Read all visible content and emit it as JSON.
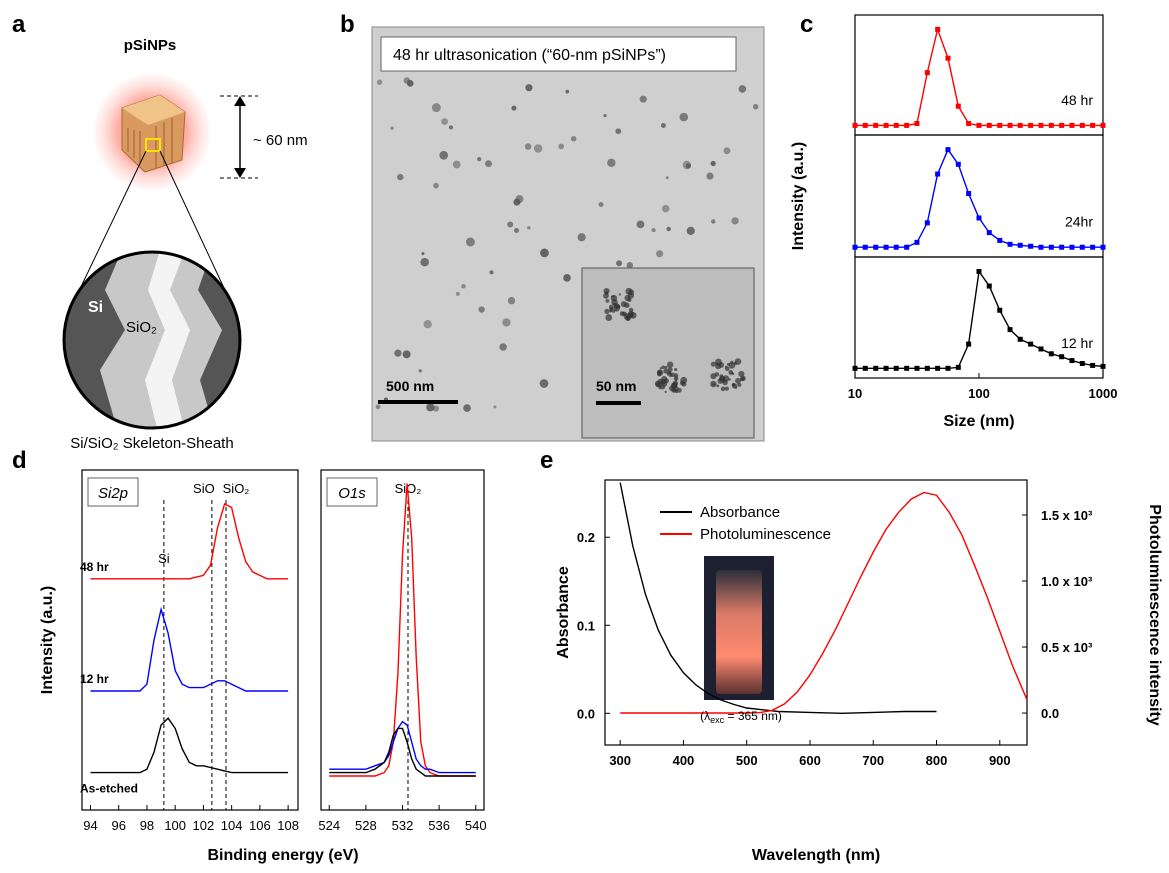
{
  "figure": {
    "panel_labels": [
      "a",
      "b",
      "c",
      "d",
      "e"
    ],
    "panel_a": {
      "title": "pSiNPs",
      "size_label": "~ 60 nm",
      "si_label": "Si",
      "sio2_label": "SiO₂",
      "caption": "Si/SiO₂ Skeleton-Sheath"
    },
    "panel_b": {
      "title": "48 hr ultrasonication (“60-nm pSiNPs”)",
      "scale_bar": "500 nm",
      "inset_scale_bar": "50 nm"
    }
  },
  "chart_data": [
    {
      "type": "line",
      "xscale": "log",
      "xlim": [
        10,
        1000
      ],
      "ylim": [
        -0.1,
        1.15
      ],
      "x": [
        10,
        12.1,
        14.7,
        17.8,
        21.5,
        26.1,
        31.6,
        38.3,
        46.4,
        56.2,
        68.1,
        82.5,
        100,
        121,
        147,
        178,
        215,
        261,
        316,
        383,
        464,
        562,
        681,
        825,
        1000
      ],
      "series": [
        {
          "name": "48 hr",
          "color": "#ff0000",
          "values": [
            0,
            0,
            0,
            0,
            0,
            0,
            0.02,
            0.55,
            1.0,
            0.7,
            0.2,
            0.02,
            0,
            0,
            0,
            0,
            0,
            0,
            0,
            0,
            0,
            0,
            0,
            0,
            0
          ]
        }
      ]
    },
    {
      "type": "line",
      "xscale": "log",
      "xlim": [
        10,
        1000
      ],
      "ylim": [
        -0.1,
        1.15
      ],
      "ylabel": "Intensity (a.u.)",
      "x": [
        10,
        12.1,
        14.7,
        17.8,
        21.5,
        26.1,
        31.6,
        38.3,
        46.4,
        56.2,
        68.1,
        82.5,
        100,
        121,
        147,
        178,
        215,
        261,
        316,
        383,
        464,
        562,
        681,
        825,
        1000
      ],
      "series": [
        {
          "name": "24hr",
          "color": "#0000ff",
          "values": [
            0,
            0,
            0,
            0,
            0,
            0,
            0.05,
            0.25,
            0.75,
            1.0,
            0.85,
            0.55,
            0.3,
            0.15,
            0.07,
            0.03,
            0.02,
            0.01,
            0,
            0,
            0,
            0,
            0,
            0,
            0
          ]
        }
      ]
    },
    {
      "type": "line",
      "xscale": "log",
      "xlim": [
        10,
        1000
      ],
      "ylim": [
        -0.1,
        1.15
      ],
      "xticks": [
        10,
        100,
        1000
      ],
      "xlabel": "Size (nm)",
      "x": [
        10,
        12.1,
        14.7,
        17.8,
        21.5,
        26.1,
        31.6,
        38.3,
        46.4,
        56.2,
        68.1,
        82.5,
        100,
        121,
        147,
        178,
        215,
        261,
        316,
        383,
        464,
        562,
        681,
        825,
        1000
      ],
      "series": [
        {
          "name": "12 hr",
          "color": "#000000",
          "values": [
            0,
            0,
            0,
            0,
            0,
            0,
            0,
            0,
            0,
            0,
            0.01,
            0.25,
            1.0,
            0.85,
            0.6,
            0.4,
            0.3,
            0.25,
            0.2,
            0.15,
            0.12,
            0.08,
            0.05,
            0.03,
            0.02
          ]
        }
      ]
    },
    {
      "type": "line",
      "annotation": "Si2p",
      "ylabel": "Intensity (a.u.)",
      "xlim": [
        93.4,
        108.7
      ],
      "ylim": [
        0,
        1
      ],
      "xticks": [
        94,
        96,
        98,
        100,
        102,
        104,
        106,
        108
      ],
      "ref_lines": [
        {
          "label": "Si",
          "x": 99.2
        },
        {
          "label": "SiO",
          "x": 102.6
        },
        {
          "label": "SiO₂",
          "x": 103.6
        }
      ],
      "x": [
        94,
        94.5,
        95,
        95.5,
        96,
        96.5,
        97,
        97.5,
        98,
        98.5,
        99,
        99.5,
        100,
        100.5,
        101,
        101.5,
        102,
        102.5,
        103,
        103.5,
        104,
        104.5,
        105,
        105.5,
        106,
        106.5,
        107,
        107.5,
        108
      ],
      "series": [
        {
          "name": "48 hr",
          "color": "#ff0000",
          "values": [
            0.68,
            0.68,
            0.68,
            0.68,
            0.68,
            0.68,
            0.68,
            0.68,
            0.68,
            0.68,
            0.68,
            0.68,
            0.68,
            0.68,
            0.68,
            0.685,
            0.69,
            0.72,
            0.83,
            0.9,
            0.89,
            0.8,
            0.73,
            0.7,
            0.69,
            0.68,
            0.68,
            0.68,
            0.68
          ]
        },
        {
          "name": "12 hr",
          "color": "#0000ff",
          "values": [
            0.35,
            0.35,
            0.35,
            0.35,
            0.35,
            0.35,
            0.35,
            0.35,
            0.37,
            0.5,
            0.59,
            0.52,
            0.41,
            0.37,
            0.36,
            0.36,
            0.36,
            0.37,
            0.38,
            0.38,
            0.37,
            0.36,
            0.35,
            0.35,
            0.35,
            0.35,
            0.35,
            0.35,
            0.35
          ]
        },
        {
          "name": "As-etched",
          "color": "#000000",
          "values": [
            0.11,
            0.11,
            0.11,
            0.11,
            0.11,
            0.11,
            0.11,
            0.11,
            0.12,
            0.17,
            0.25,
            0.27,
            0.24,
            0.18,
            0.14,
            0.13,
            0.13,
            0.125,
            0.12,
            0.115,
            0.11,
            0.11,
            0.11,
            0.11,
            0.11,
            0.11,
            0.11,
            0.11,
            0.11
          ]
        }
      ]
    },
    {
      "type": "line",
      "annotation": "O1s",
      "xlabel": "Binding energy (eV)",
      "xlim": [
        523.1,
        540.9
      ],
      "ylim": [
        0,
        1
      ],
      "xticks": [
        524,
        528,
        532,
        536,
        540
      ],
      "ref_lines": [
        {
          "label": "SiO₂",
          "x": 532.6
        }
      ],
      "x": [
        524,
        525,
        526,
        527,
        528,
        529,
        530,
        530.5,
        531,
        531.5,
        532,
        532.5,
        533,
        533.5,
        534,
        534.5,
        535,
        536,
        537,
        538,
        539,
        540
      ],
      "series": [
        {
          "name": "48 hr",
          "color": "#ff0000",
          "values": [
            0.1,
            0.1,
            0.1,
            0.1,
            0.1,
            0.1,
            0.11,
            0.13,
            0.2,
            0.4,
            0.75,
            0.96,
            0.8,
            0.45,
            0.2,
            0.13,
            0.11,
            0.1,
            0.1,
            0.1,
            0.1,
            0.1
          ]
        },
        {
          "name": "12 hr",
          "color": "#0000ff",
          "values": [
            0.12,
            0.12,
            0.12,
            0.12,
            0.12,
            0.13,
            0.14,
            0.16,
            0.2,
            0.24,
            0.26,
            0.25,
            0.2,
            0.15,
            0.13,
            0.12,
            0.12,
            0.11,
            0.11,
            0.11,
            0.11,
            0.11
          ]
        },
        {
          "name": "As-etched",
          "color": "#000000",
          "values": [
            0.11,
            0.11,
            0.11,
            0.11,
            0.11,
            0.12,
            0.14,
            0.17,
            0.22,
            0.24,
            0.24,
            0.2,
            0.15,
            0.12,
            0.11,
            0.1,
            0.1,
            0.1,
            0.1,
            0.1,
            0.1,
            0.1
          ]
        }
      ]
    },
    {
      "type": "line",
      "xlim": [
        276,
        943
      ],
      "xticks": [
        300,
        400,
        500,
        600,
        700,
        800,
        900
      ],
      "ylim": [
        -0.036,
        0.265
      ],
      "yticks": [
        {
          "value": 0,
          "label": "0.0"
        },
        0.1,
        0.2
      ],
      "y2lim": [
        -242,
        1765
      ],
      "y2ticks": [
        {
          "value": 0,
          "label": "0.0"
        },
        {
          "value": 500,
          "label": "0.5 x 10³"
        },
        {
          "value": 1000,
          "label": "1.0 x 10³"
        },
        {
          "value": 1500,
          "label": "1.5 x 10³"
        }
      ],
      "xlabel": "Wavelength (nm)",
      "ylabel": "Absorbance",
      "y2label": "Photoluminescence intensity",
      "legend": "upper left",
      "inset_caption": [
        "(λ",
        "exc",
        " = 365 nm)"
      ],
      "series": [
        {
          "name": "Absorbance",
          "color": "#000000",
          "x": [
            300,
            320,
            340,
            360,
            380,
            400,
            420,
            440,
            460,
            480,
            500,
            550,
            600,
            650,
            700,
            750,
            800
          ],
          "values": [
            0.262,
            0.19,
            0.135,
            0.095,
            0.066,
            0.046,
            0.032,
            0.022,
            0.015,
            0.01,
            0.006,
            0.002,
            0.001,
            0,
            0.001,
            0.002,
            0.002
          ]
        },
        {
          "name": "Photoluminescence",
          "color": "#ff0000",
          "axis": "y2",
          "x": [
            300,
            500,
            520,
            540,
            560,
            580,
            600,
            620,
            640,
            660,
            680,
            700,
            720,
            740,
            760,
            780,
            800,
            820,
            840,
            860,
            880,
            900,
            920,
            943
          ],
          "values": [
            0,
            0,
            3,
            20,
            70,
            160,
            290,
            450,
            630,
            830,
            1030,
            1220,
            1390,
            1520,
            1620,
            1670,
            1650,
            1520,
            1350,
            1120,
            880,
            620,
            360,
            100
          ]
        }
      ]
    }
  ]
}
